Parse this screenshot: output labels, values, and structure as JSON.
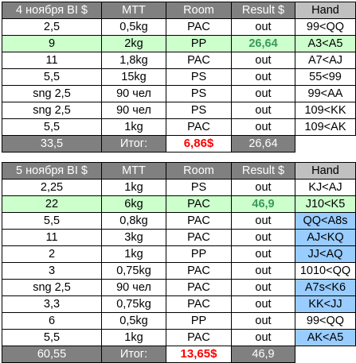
{
  "tables": [
    {
      "header": {
        "buyin": "4 ноября BI $",
        "mtt": "MTT",
        "room": "Room",
        "result": "Result $",
        "hand": "Hand"
      },
      "rows": [
        {
          "buyin": "2,5",
          "mtt": "0,5kg",
          "room": "PAC",
          "result": "out",
          "hand": "99<QQ",
          "win": false,
          "blue": false
        },
        {
          "buyin": "9",
          "mtt": "2kg",
          "room": "PP",
          "result": "26,64",
          "hand": "A3<A5",
          "win": true,
          "blue": false
        },
        {
          "buyin": "11",
          "mtt": "1,8kg",
          "room": "PAC",
          "result": "out",
          "hand": "A7<AJ",
          "win": false,
          "blue": false
        },
        {
          "buyin": "5,5",
          "mtt": "15kg",
          "room": "PS",
          "result": "out",
          "hand": "55<99",
          "win": false,
          "blue": false
        },
        {
          "buyin": "sng 2,5",
          "mtt": "90 чел",
          "room": "PS",
          "result": "out",
          "hand": "99<AA",
          "win": false,
          "blue": false
        },
        {
          "buyin": "sng 2,5",
          "mtt": "90 чел",
          "room": "PS",
          "result": "out",
          "hand": "109<KK",
          "win": false,
          "blue": false
        },
        {
          "buyin": "5,5",
          "mtt": "1kg",
          "room": "PAC",
          "result": "out",
          "hand": "109<AK",
          "win": false,
          "blue": false
        }
      ],
      "total": {
        "buyin": "33,5",
        "label": "Итог:",
        "value": "6,86$",
        "result": "26,64"
      }
    },
    {
      "header": {
        "buyin": "5 ноября BI $",
        "mtt": "MTT",
        "room": "Room",
        "result": "Result $",
        "hand": "Hand"
      },
      "rows": [
        {
          "buyin": "2,25",
          "mtt": "1kg",
          "room": "PS",
          "result": "out",
          "hand": "KJ<AJ",
          "win": false,
          "blue": false
        },
        {
          "buyin": "22",
          "mtt": "6kg",
          "room": "PAC",
          "result": "46,9",
          "hand": "J10<K5",
          "win": true,
          "blue": false
        },
        {
          "buyin": "5,5",
          "mtt": "0,8kg",
          "room": "PAC",
          "result": "out",
          "hand": "QQ<A8s",
          "win": false,
          "blue": true
        },
        {
          "buyin": "11",
          "mtt": "3kg",
          "room": "PAC",
          "result": "out",
          "hand": "AJ<KQ",
          "win": false,
          "blue": true
        },
        {
          "buyin": "2",
          "mtt": "1kg",
          "room": "PP",
          "result": "out",
          "hand": "JJ<AQ",
          "win": false,
          "blue": true
        },
        {
          "buyin": "3",
          "mtt": "0,75kg",
          "room": "PAC",
          "result": "out",
          "hand": "1010<QQ",
          "win": false,
          "blue": false
        },
        {
          "buyin": "sng 2,5",
          "mtt": "90 чел",
          "room": "PAC",
          "result": "out",
          "hand": "A7s<K6",
          "win": false,
          "blue": true
        },
        {
          "buyin": "3,3",
          "mtt": "0,75kg",
          "room": "PAC",
          "result": "out",
          "hand": "KK<JJ",
          "win": false,
          "blue": true
        },
        {
          "buyin": "6",
          "mtt": "0,5kg",
          "room": "PP",
          "result": "out",
          "hand": "99<QQ",
          "win": false,
          "blue": false
        },
        {
          "buyin": "5,5",
          "mtt": "1kg",
          "room": "PAC",
          "result": "out",
          "hand": "AK<A5",
          "win": false,
          "blue": true
        }
      ],
      "total": {
        "buyin": "60,55",
        "label": "Итог:",
        "value": "13,65$",
        "result": "46,9"
      }
    }
  ]
}
